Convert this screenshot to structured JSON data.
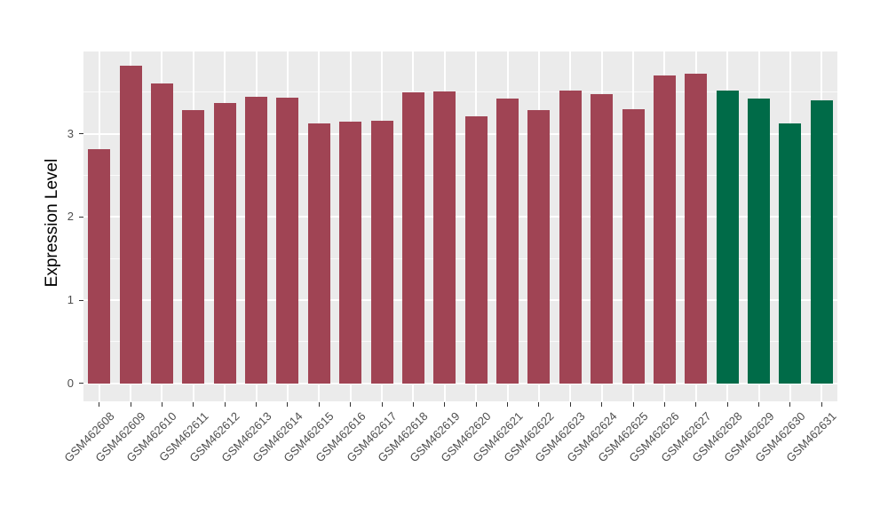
{
  "chart_data": {
    "type": "bar",
    "title": "",
    "xlabel": "",
    "ylabel": "Expression Level",
    "categories": [
      "GSM462608",
      "GSM462609",
      "GSM462610",
      "GSM462611",
      "GSM462612",
      "GSM462613",
      "GSM462614",
      "GSM462615",
      "GSM462616",
      "GSM462617",
      "GSM462618",
      "GSM462619",
      "GSM462620",
      "GSM462621",
      "GSM462622",
      "GSM462623",
      "GSM462624",
      "GSM462625",
      "GSM462626",
      "GSM462627",
      "GSM462628",
      "GSM462629",
      "GSM462630",
      "GSM462631"
    ],
    "values": [
      2.82,
      3.82,
      3.6,
      3.29,
      3.37,
      3.45,
      3.43,
      3.12,
      3.15,
      3.16,
      3.5,
      3.51,
      3.21,
      3.42,
      3.28,
      3.52,
      3.48,
      3.3,
      3.7,
      3.72,
      3.52,
      3.42,
      3.12,
      3.4
    ],
    "bar_colors": [
      "#A04454",
      "#A04454",
      "#A04454",
      "#A04454",
      "#A04454",
      "#A04454",
      "#A04454",
      "#A04454",
      "#A04454",
      "#A04454",
      "#A04454",
      "#A04454",
      "#A04454",
      "#A04454",
      "#A04454",
      "#A04454",
      "#A04454",
      "#A04454",
      "#A04454",
      "#A04454",
      "#006B48",
      "#006B48",
      "#006B48",
      "#006B48"
    ],
    "group_colors": {
      "maroon": "#A04454",
      "green": "#006B48"
    },
    "yticks": [
      "0",
      "1",
      "2",
      "3"
    ],
    "ylim": [
      0,
      4
    ],
    "grid": "on",
    "legend": "none",
    "panel_background": "#EBEBEB",
    "gridline_color": "#FFFFFF",
    "page_background": "#FFFFFF"
  }
}
